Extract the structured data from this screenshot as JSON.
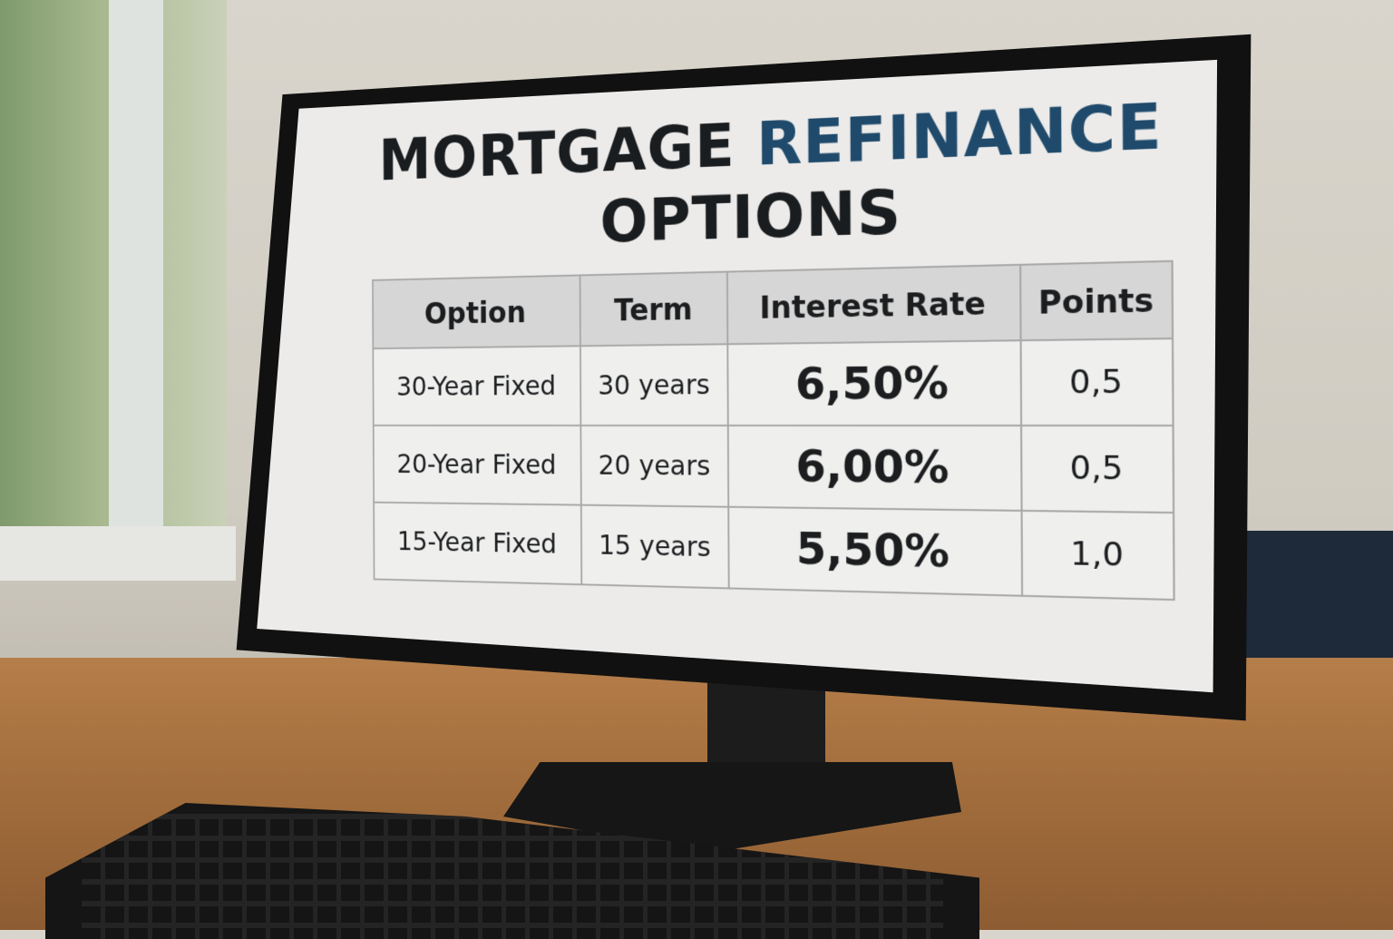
{
  "slide": {
    "title_part1": "MORTGAGE",
    "title_part2": "REFINANCE",
    "title_line2": "OPTIONS",
    "accent_color": "#1f4a6b"
  },
  "table": {
    "headers": [
      "Option",
      "Term",
      "Interest Rate",
      "Points"
    ],
    "rows": [
      [
        "30-Year Fixed",
        "30 years",
        "6,50%",
        "0,5"
      ],
      [
        "20-Year Fixed",
        "20 years",
        "6,00%",
        "0,5"
      ],
      [
        "15-Year Fixed",
        "15 years",
        "5,50%",
        "1,0"
      ]
    ]
  }
}
